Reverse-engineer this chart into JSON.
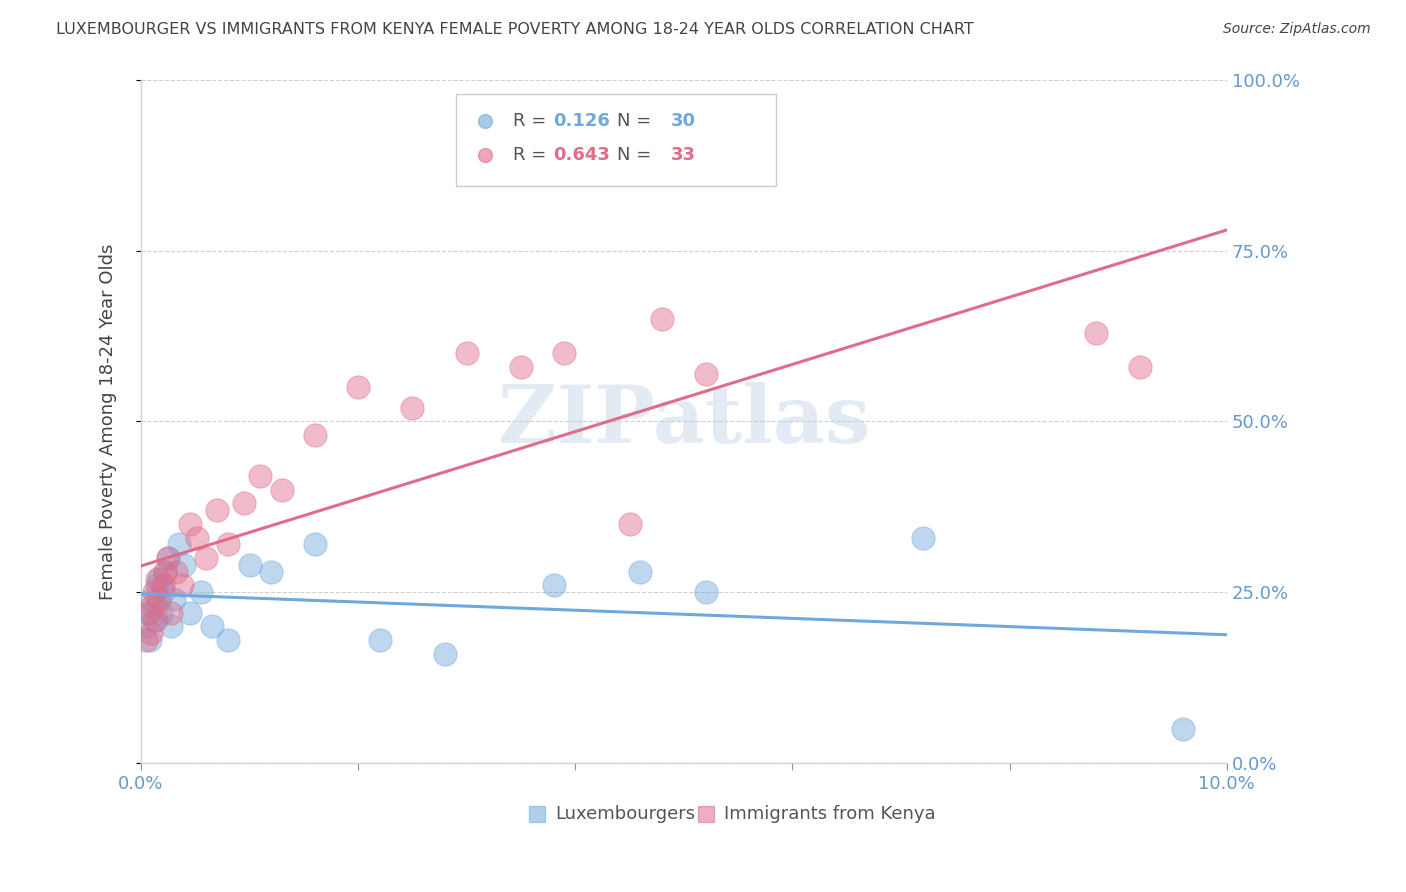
{
  "title": "LUXEMBOURGER VS IMMIGRANTS FROM KENYA FEMALE POVERTY AMONG 18-24 YEAR OLDS CORRELATION CHART",
  "source": "Source: ZipAtlas.com",
  "ylabel": "Female Poverty Among 18-24 Year Olds",
  "xlim": [
    0.0,
    10.0
  ],
  "ylim": [
    0.0,
    100.0
  ],
  "blue_color": "#6fa8dc",
  "pink_color": "#e06c8a",
  "blue_r": 0.126,
  "blue_n": 30,
  "pink_r": 0.643,
  "pink_n": 33,
  "blue_label": "Luxembourgers",
  "pink_label": "Immigrants from Kenya",
  "watermark": "ZIPatlas",
  "lux_x": [
    0.05,
    0.07,
    0.08,
    0.1,
    0.12,
    0.14,
    0.15,
    0.17,
    0.18,
    0.2,
    0.22,
    0.25,
    0.28,
    0.3,
    0.35,
    0.4,
    0.45,
    0.55,
    0.65,
    0.8,
    1.0,
    1.2,
    1.6,
    2.2,
    2.8,
    3.8,
    4.6,
    5.2,
    7.2,
    9.6
  ],
  "lux_y": [
    20,
    22,
    18,
    24,
    21,
    23,
    26,
    27,
    22,
    25,
    28,
    30,
    20,
    24,
    32,
    29,
    22,
    25,
    20,
    18,
    29,
    28,
    32,
    18,
    16,
    26,
    28,
    25,
    33,
    5
  ],
  "ken_x": [
    0.05,
    0.07,
    0.09,
    0.1,
    0.12,
    0.14,
    0.15,
    0.17,
    0.2,
    0.22,
    0.25,
    0.28,
    0.32,
    0.38,
    0.45,
    0.52,
    0.6,
    0.7,
    0.8,
    0.95,
    1.1,
    1.3,
    1.6,
    2.0,
    2.5,
    3.0,
    3.5,
    3.9,
    4.5,
    4.8,
    5.2,
    8.8,
    9.2
  ],
  "ken_y": [
    18,
    22,
    19,
    23,
    25,
    21,
    27,
    24,
    26,
    28,
    30,
    22,
    28,
    26,
    35,
    33,
    30,
    37,
    32,
    38,
    42,
    40,
    48,
    55,
    52,
    60,
    58,
    60,
    35,
    65,
    57,
    63,
    58
  ],
  "background_color": "#ffffff",
  "grid_color": "#d0d0d0",
  "title_color": "#444444",
  "tick_label_color": "#6699cc",
  "legend_color": "#555555"
}
